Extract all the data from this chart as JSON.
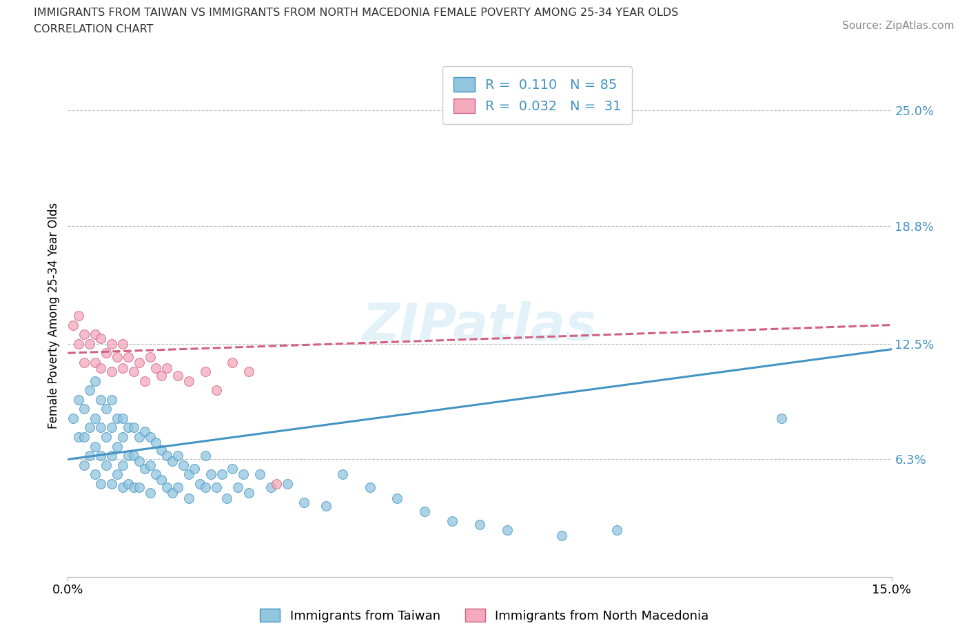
{
  "title_line1": "IMMIGRANTS FROM TAIWAN VS IMMIGRANTS FROM NORTH MACEDONIA FEMALE POVERTY AMONG 25-34 YEAR OLDS",
  "title_line2": "CORRELATION CHART",
  "source": "Source: ZipAtlas.com",
  "ylabel": "Female Poverty Among 25-34 Year Olds",
  "xlim": [
    0.0,
    0.15
  ],
  "ylim": [
    0.0,
    0.28
  ],
  "yticks": [
    0.063,
    0.125,
    0.188,
    0.25
  ],
  "ytick_labels": [
    "6.3%",
    "12.5%",
    "18.8%",
    "25.0%"
  ],
  "xticks": [
    0.0,
    0.15
  ],
  "xtick_labels": [
    "0.0%",
    "15.0%"
  ],
  "hlines": [
    0.063,
    0.125,
    0.188,
    0.25
  ],
  "taiwan_color": "#92C5DE",
  "taiwan_color_dark": "#4393C3",
  "north_mac_color": "#F4A9BD",
  "north_mac_color_dark": "#D06080",
  "taiwan_R": 0.11,
  "taiwan_N": 85,
  "north_mac_R": 0.032,
  "north_mac_N": 31,
  "watermark": "ZIPatlas",
  "legend_taiwan": "Immigrants from Taiwan",
  "legend_north_mac": "Immigrants from North Macedonia",
  "taiwan_trend_x0": 0.0,
  "taiwan_trend_y0": 0.063,
  "taiwan_trend_x1": 0.15,
  "taiwan_trend_y1": 0.122,
  "north_mac_trend_x0": 0.0,
  "north_mac_trend_y0": 0.12,
  "north_mac_trend_x1": 0.15,
  "north_mac_trend_y1": 0.135,
  "taiwan_scatter_x": [
    0.001,
    0.002,
    0.002,
    0.003,
    0.003,
    0.003,
    0.004,
    0.004,
    0.004,
    0.005,
    0.005,
    0.005,
    0.005,
    0.006,
    0.006,
    0.006,
    0.006,
    0.007,
    0.007,
    0.007,
    0.008,
    0.008,
    0.008,
    0.008,
    0.009,
    0.009,
    0.009,
    0.01,
    0.01,
    0.01,
    0.01,
    0.011,
    0.011,
    0.011,
    0.012,
    0.012,
    0.012,
    0.013,
    0.013,
    0.013,
    0.014,
    0.014,
    0.015,
    0.015,
    0.015,
    0.016,
    0.016,
    0.017,
    0.017,
    0.018,
    0.018,
    0.019,
    0.019,
    0.02,
    0.02,
    0.021,
    0.022,
    0.022,
    0.023,
    0.024,
    0.025,
    0.025,
    0.026,
    0.027,
    0.028,
    0.029,
    0.03,
    0.031,
    0.032,
    0.033,
    0.035,
    0.037,
    0.04,
    0.043,
    0.047,
    0.05,
    0.055,
    0.06,
    0.065,
    0.07,
    0.075,
    0.08,
    0.09,
    0.1,
    0.13
  ],
  "taiwan_scatter_y": [
    0.085,
    0.095,
    0.075,
    0.09,
    0.075,
    0.06,
    0.1,
    0.08,
    0.065,
    0.105,
    0.085,
    0.07,
    0.055,
    0.095,
    0.08,
    0.065,
    0.05,
    0.09,
    0.075,
    0.06,
    0.095,
    0.08,
    0.065,
    0.05,
    0.085,
    0.07,
    0.055,
    0.085,
    0.075,
    0.06,
    0.048,
    0.08,
    0.065,
    0.05,
    0.08,
    0.065,
    0.048,
    0.075,
    0.062,
    0.048,
    0.078,
    0.058,
    0.075,
    0.06,
    0.045,
    0.072,
    0.055,
    0.068,
    0.052,
    0.065,
    0.048,
    0.062,
    0.045,
    0.065,
    0.048,
    0.06,
    0.055,
    0.042,
    0.058,
    0.05,
    0.065,
    0.048,
    0.055,
    0.048,
    0.055,
    0.042,
    0.058,
    0.048,
    0.055,
    0.045,
    0.055,
    0.048,
    0.05,
    0.04,
    0.038,
    0.055,
    0.048,
    0.042,
    0.035,
    0.03,
    0.028,
    0.025,
    0.022,
    0.025,
    0.085
  ],
  "north_mac_scatter_x": [
    0.001,
    0.002,
    0.002,
    0.003,
    0.003,
    0.004,
    0.005,
    0.005,
    0.006,
    0.006,
    0.007,
    0.008,
    0.008,
    0.009,
    0.01,
    0.01,
    0.011,
    0.012,
    0.013,
    0.014,
    0.015,
    0.016,
    0.017,
    0.018,
    0.02,
    0.022,
    0.025,
    0.027,
    0.03,
    0.033,
    0.038
  ],
  "north_mac_scatter_y": [
    0.135,
    0.14,
    0.125,
    0.13,
    0.115,
    0.125,
    0.13,
    0.115,
    0.128,
    0.112,
    0.12,
    0.125,
    0.11,
    0.118,
    0.125,
    0.112,
    0.118,
    0.11,
    0.115,
    0.105,
    0.118,
    0.112,
    0.108,
    0.112,
    0.108,
    0.105,
    0.11,
    0.1,
    0.115,
    0.11,
    0.05
  ]
}
